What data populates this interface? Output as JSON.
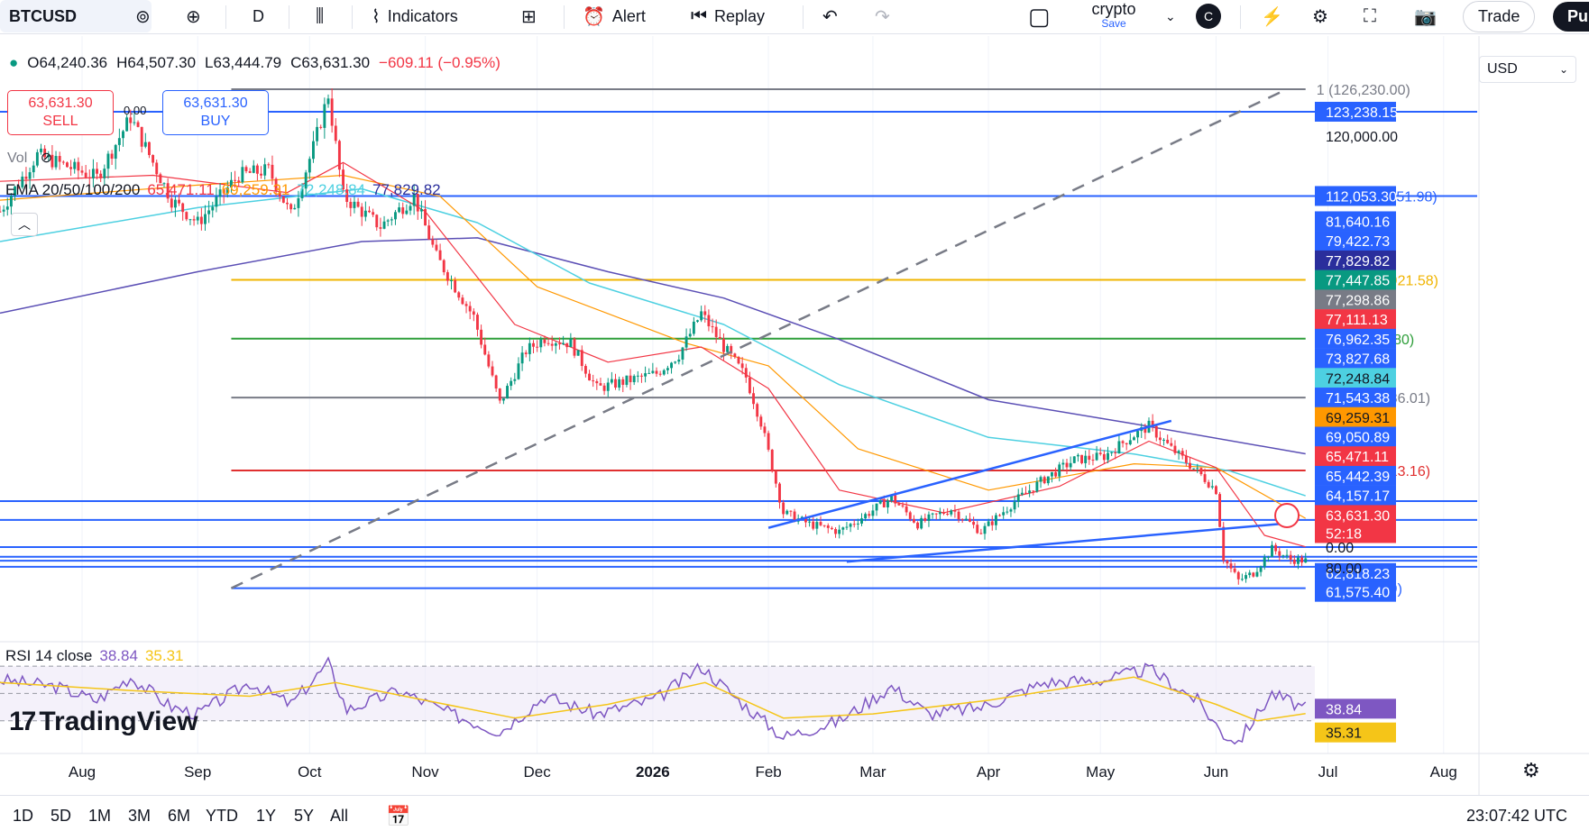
{
  "toolbar": {
    "symbol": "BTCUSD",
    "interval": "D",
    "indicators": "Indicators",
    "alert": "Alert",
    "replay": "Replay",
    "layout_name": "crypto",
    "save": "Save",
    "user_badge": "C",
    "trade": "Trade",
    "publish": "Pu"
  },
  "ohlc": {
    "open": "O64,240.36",
    "high": "H64,507.30",
    "low": "L63,444.79",
    "close": "C63,631.30",
    "change": "−609.11 (−0.95%)"
  },
  "trade": {
    "sell_price": "63,631.30",
    "sell_label": "SELL",
    "buy_price": "63,631.30",
    "buy_label": "BUY",
    "spread": "0.00"
  },
  "volume_label": "Vol",
  "ema_legend": {
    "name": "EMA 20/50/100/200",
    "v20": "65,471.11",
    "v50": "69,259.31",
    "v100": "72,248.84",
    "v200": "77,829.82"
  },
  "rsi_legend": {
    "name": "RSI 14 close",
    "rsi": "38.84",
    "ma": "35.31"
  },
  "currency": "USD",
  "branding": "TradingView",
  "bottombar": {
    "ranges": [
      "1D",
      "5D",
      "1M",
      "3M",
      "6M",
      "YTD",
      "1Y",
      "5Y",
      "All"
    ],
    "time": "23:07:42 UTC"
  },
  "colors": {
    "up": "#089981",
    "down": "#f23645",
    "ema20": "#f23645",
    "ema50": "#ff9800",
    "ema100": "#4dd0e1",
    "ema200": "#5b4fb5",
    "fib_grey": "#787b86",
    "fib_gold": "#f0b400",
    "fib_green": "#2e9e3a",
    "fib_red": "#e03030",
    "hline_blue": "#2962ff",
    "rsi_line": "#7e57c2",
    "rsi_ma": "#f5c518"
  },
  "chart_data": {
    "type": "candlestick",
    "x_ticks": [
      {
        "label": "Aug",
        "date": "2025-08-01"
      },
      {
        "label": "Sep",
        "date": "2025-09-01"
      },
      {
        "label": "Oct",
        "date": "2025-10-01"
      },
      {
        "label": "Nov",
        "date": "2025-11-01"
      },
      {
        "label": "Dec",
        "date": "2025-12-01"
      },
      {
        "label": "2026",
        "date": "2026-01-01"
      },
      {
        "label": "Feb",
        "date": "2026-02-01"
      },
      {
        "label": "Mar",
        "date": "2026-03-01"
      },
      {
        "label": "Apr",
        "date": "2026-04-01"
      },
      {
        "label": "May",
        "date": "2026-05-01"
      },
      {
        "label": "Jun",
        "date": "2026-06-01"
      },
      {
        "label": "Jul",
        "date": "2026-07-01"
      },
      {
        "label": "Aug",
        "date": "2026-08-01"
      }
    ],
    "x_range": [
      "2025-07-10",
      "2026-08-10"
    ],
    "y_range": [
      58500,
      128500
    ],
    "y_ticks_shown": [
      "120,000.00"
    ],
    "price_path": [
      [
        "2025-07-10",
        110000
      ],
      [
        "2025-07-20",
        117500
      ],
      [
        "2025-08-05",
        114500
      ],
      [
        "2025-08-14",
        122500
      ],
      [
        "2025-08-25",
        111500
      ],
      [
        "2025-09-01",
        108500
      ],
      [
        "2025-09-12",
        114800
      ],
      [
        "2025-09-20",
        115500
      ],
      [
        "2025-09-26",
        109500
      ],
      [
        "2025-10-02",
        118500
      ],
      [
        "2025-10-06",
        125500
      ],
      [
        "2025-10-10",
        112000
      ],
      [
        "2025-10-20",
        108000
      ],
      [
        "2025-10-29",
        112000
      ],
      [
        "2025-11-04",
        104000
      ],
      [
        "2025-11-08",
        100800
      ],
      [
        "2025-11-14",
        96000
      ],
      [
        "2025-11-21",
        84500
      ],
      [
        "2025-11-28",
        91500
      ],
      [
        "2025-12-03",
        93200
      ],
      [
        "2025-12-10",
        92500
      ],
      [
        "2025-12-17",
        86500
      ],
      [
        "2025-12-25",
        87500
      ],
      [
        "2026-01-02",
        88500
      ],
      [
        "2026-01-08",
        91000
      ],
      [
        "2026-01-14",
        96500
      ],
      [
        "2026-01-20",
        92000
      ],
      [
        "2026-01-26",
        88000
      ],
      [
        "2026-01-30",
        82000
      ],
      [
        "2026-02-05",
        70000
      ],
      [
        "2026-02-12",
        68500
      ],
      [
        "2026-02-20",
        67500
      ],
      [
        "2026-02-28",
        70000
      ],
      [
        "2026-03-06",
        72000
      ],
      [
        "2026-03-13",
        68500
      ],
      [
        "2026-03-22",
        70500
      ],
      [
        "2026-03-30",
        67500
      ],
      [
        "2026-04-08",
        71500
      ],
      [
        "2026-04-16",
        74500
      ],
      [
        "2026-04-24",
        77000
      ],
      [
        "2026-05-02",
        77500
      ],
      [
        "2026-05-09",
        80000
      ],
      [
        "2026-05-14",
        81500
      ],
      [
        "2026-05-20",
        78500
      ],
      [
        "2026-05-27",
        75500
      ],
      [
        "2026-06-01",
        73000
      ],
      [
        "2026-06-03",
        64000
      ],
      [
        "2026-06-07",
        61000
      ],
      [
        "2026-06-11",
        62000
      ],
      [
        "2026-06-16",
        65200
      ],
      [
        "2026-06-21",
        63800
      ],
      [
        "2026-06-25",
        63631.3
      ]
    ],
    "series": [
      {
        "name": "EMA 20",
        "last_value": 65471.11
      },
      {
        "name": "EMA 50",
        "last_value": 69259.31
      },
      {
        "name": "EMA 100",
        "last_value": 72248.84
      },
      {
        "name": "EMA 200",
        "last_value": 77829.82
      }
    ],
    "ema_paths": {
      "ema20": [
        [
          "2025-07-10",
          114000
        ],
        [
          "2025-08-20",
          114800
        ],
        [
          "2025-09-25",
          112500
        ],
        [
          "2025-10-10",
          116500
        ],
        [
          "2025-11-01",
          110000
        ],
        [
          "2025-11-25",
          95000
        ],
        [
          "2025-12-20",
          90000
        ],
        [
          "2026-01-14",
          92000
        ],
        [
          "2026-02-01",
          86500
        ],
        [
          "2026-02-20",
          73000
        ],
        [
          "2026-03-20",
          70000
        ],
        [
          "2026-04-20",
          73500
        ],
        [
          "2026-05-14",
          79500
        ],
        [
          "2026-06-01",
          76000
        ],
        [
          "2026-06-14",
          67000
        ],
        [
          "2026-06-25",
          65471.11
        ]
      ],
      "ema50": [
        [
          "2025-07-10",
          111500
        ],
        [
          "2025-09-01",
          113500
        ],
        [
          "2025-10-10",
          114800
        ],
        [
          "2025-11-05",
          112000
        ],
        [
          "2025-12-01",
          100000
        ],
        [
          "2026-01-10",
          92500
        ],
        [
          "2026-02-01",
          89500
        ],
        [
          "2026-02-25",
          78500
        ],
        [
          "2026-04-01",
          73000
        ],
        [
          "2026-05-10",
          76500
        ],
        [
          "2026-06-01",
          76000
        ],
        [
          "2026-06-25",
          69259.31
        ]
      ],
      "ema100": [
        [
          "2025-07-10",
          106000
        ],
        [
          "2025-09-01",
          110500
        ],
        [
          "2025-10-15",
          113000
        ],
        [
          "2025-11-15",
          108500
        ],
        [
          "2025-12-15",
          100500
        ],
        [
          "2026-01-20",
          95000
        ],
        [
          "2026-02-20",
          87000
        ],
        [
          "2026-04-01",
          80000
        ],
        [
          "2026-05-10",
          77800
        ],
        [
          "2026-06-05",
          75500
        ],
        [
          "2026-06-25",
          72248.84
        ]
      ],
      "ema200": [
        [
          "2025-07-10",
          96500
        ],
        [
          "2025-09-01",
          102000
        ],
        [
          "2025-10-15",
          106000
        ],
        [
          "2025-11-15",
          106500
        ],
        [
          "2025-12-20",
          102000
        ],
        [
          "2026-01-20",
          98500
        ],
        [
          "2026-02-20",
          93000
        ],
        [
          "2026-04-01",
          85000
        ],
        [
          "2026-05-10",
          81800
        ],
        [
          "2026-06-25",
          77829.82
        ]
      ]
    },
    "fib_levels": [
      {
        "label": "1 (126,230.00)",
        "price": 126230.0,
        "color": "#787b86"
      },
      {
        "label": "0.786 (112,051.98)",
        "price": 112051.98,
        "color": "#2962ff"
      },
      {
        "label": "0.618 (100,921.58)",
        "price": 100921.58,
        "color": "#f0b400"
      },
      {
        "label": "0.5 (93,103.80)",
        "price": 93103.8,
        "color": "#2e9e3a"
      },
      {
        "label": "0.382 (85,286.01)",
        "price": 85286.01,
        "color": "#787b86"
      },
      {
        "label": "0.236 (75,613.16)",
        "price": 75613.16,
        "color": "#e03030"
      },
      {
        "label": "0 (59,977.59)",
        "price": 59977.59,
        "color": "#2962ff"
      }
    ],
    "fib_start_date": "2025-09-10",
    "fib_end_date": "2026-06-25",
    "trend_line": {
      "from": [
        "2025-09-10",
        59977.59
      ],
      "to": [
        "2026-06-20",
        126230.0
      ]
    },
    "horizontal_lines": [
      123238.15,
      112051.98,
      71543.38,
      69050.89,
      65442.39,
      64157.17,
      63631.3,
      62818.23
    ],
    "channel": {
      "upper": [
        [
          "2026-02-01",
          68000
        ],
        [
          "2026-05-20",
          82200
        ]
      ],
      "lower": [
        [
          "2026-02-22",
          63500
        ],
        [
          "2026-06-20",
          68600
        ]
      ]
    },
    "price_labels": [
      {
        "text": "123,238.15",
        "price": 123238.15,
        "bg": "#2962ff",
        "fg": "#ffffff"
      },
      {
        "text": "120,000.00",
        "price": 120000.0,
        "bg": "",
        "fg": "#131722"
      },
      {
        "text": "112,053.30",
        "price": 112053.3,
        "bg": "#2962ff",
        "fg": "#ffffff"
      },
      {
        "text": "81,640.16",
        "price": 108700.0,
        "bg": "#2962ff",
        "fg": "#ffffff"
      },
      {
        "text": "79,422.73",
        "price": 106100.0,
        "bg": "#2962ff",
        "fg": "#ffffff"
      },
      {
        "text": "77,829.82",
        "price": 103500.0,
        "bg": "#2a2e9c",
        "fg": "#ffffff"
      },
      {
        "text": "77,447.85",
        "price": 100900.0,
        "bg": "#089981",
        "fg": "#ffffff"
      },
      {
        "text": "77,298.86",
        "price": 98300.0,
        "bg": "#787b86",
        "fg": "#ffffff"
      },
      {
        "text": "77,111.13",
        "price": 95700.0,
        "bg": "#f23645",
        "fg": "#ffffff"
      },
      {
        "text": "76,962.35",
        "price": 93100.0,
        "bg": "#2962ff",
        "fg": "#ffffff"
      },
      {
        "text": "73,827.68",
        "price": 90500.0,
        "bg": "#2962ff",
        "fg": "#ffffff"
      },
      {
        "text": "72,248.84",
        "price": 87900.0,
        "bg": "#4dd0e1",
        "fg": "#131722"
      },
      {
        "text": "71,543.38",
        "price": 85300.0,
        "bg": "#2962ff",
        "fg": "#ffffff"
      },
      {
        "text": "69,259.31",
        "price": 82700.0,
        "bg": "#ff9800",
        "fg": "#131722"
      },
      {
        "text": "69,050.89",
        "price": 80100.0,
        "bg": "#2962ff",
        "fg": "#ffffff"
      },
      {
        "text": "65,471.11",
        "price": 77500.0,
        "bg": "#f23645",
        "fg": "#ffffff"
      },
      {
        "text": "65,442.39",
        "price": 74900.0,
        "bg": "#2962ff",
        "fg": "#ffffff"
      },
      {
        "text": "64,157.17",
        "price": 72300.0,
        "bg": "#2962ff",
        "fg": "#ffffff"
      },
      {
        "text": "63,631.30",
        "price": 69700.0,
        "bg": "#f23645",
        "fg": "#ffffff"
      },
      {
        "text": "52:18",
        "price": 67300.0,
        "bg": "#f23645",
        "fg": "#ffffff"
      },
      {
        "text": "62,818.23",
        "price": 62000.0,
        "bg": "#2962ff",
        "fg": "#ffffff"
      },
      {
        "text": "61,575.40",
        "price": 59500.0,
        "bg": "#2962ff",
        "fg": "#ffffff"
      }
    ],
    "volume_axis_label": "0.00",
    "rsi": {
      "levels": [
        70,
        50,
        30
      ],
      "axis_label": "80.00",
      "last_value": 38.84,
      "ma_last_value": 35.31,
      "path": [
        [
          "2025-07-10",
          60
        ],
        [
          "2025-07-25",
          55
        ],
        [
          "2025-08-05",
          45
        ],
        [
          "2025-08-14",
          62
        ],
        [
          "2025-08-25",
          40
        ],
        [
          "2025-09-01",
          35
        ],
        [
          "2025-09-15",
          58
        ],
        [
          "2025-09-26",
          42
        ],
        [
          "2025-10-06",
          72
        ],
        [
          "2025-10-11",
          38
        ],
        [
          "2025-10-25",
          52
        ],
        [
          "2025-11-08",
          35
        ],
        [
          "2025-11-21",
          22
        ],
        [
          "2025-12-03",
          48
        ],
        [
          "2025-12-17",
          35
        ],
        [
          "2026-01-02",
          46
        ],
        [
          "2026-01-14",
          70
        ],
        [
          "2026-01-24",
          45
        ],
        [
          "2026-02-05",
          18
        ],
        [
          "2026-02-20",
          30
        ],
        [
          "2026-03-06",
          55
        ],
        [
          "2026-03-16",
          35
        ],
        [
          "2026-03-30",
          40
        ],
        [
          "2026-04-16",
          58
        ],
        [
          "2026-05-02",
          60
        ],
        [
          "2026-05-14",
          68
        ],
        [
          "2026-05-27",
          45
        ],
        [
          "2026-06-03",
          20
        ],
        [
          "2026-06-07",
          15
        ],
        [
          "2026-06-16",
          50
        ],
        [
          "2026-06-25",
          38.84
        ]
      ],
      "ma_path": [
        [
          "2025-07-10",
          58
        ],
        [
          "2025-08-15",
          52
        ],
        [
          "2025-09-15",
          48
        ],
        [
          "2025-10-08",
          58
        ],
        [
          "2025-11-01",
          45
        ],
        [
          "2025-11-25",
          32
        ],
        [
          "2025-12-20",
          42
        ],
        [
          "2026-01-15",
          58
        ],
        [
          "2026-02-05",
          32
        ],
        [
          "2026-03-01",
          35
        ],
        [
          "2026-04-01",
          45
        ],
        [
          "2026-05-10",
          62
        ],
        [
          "2026-06-01",
          42
        ],
        [
          "2026-06-12",
          30
        ],
        [
          "2026-06-25",
          35.31
        ]
      ]
    }
  }
}
